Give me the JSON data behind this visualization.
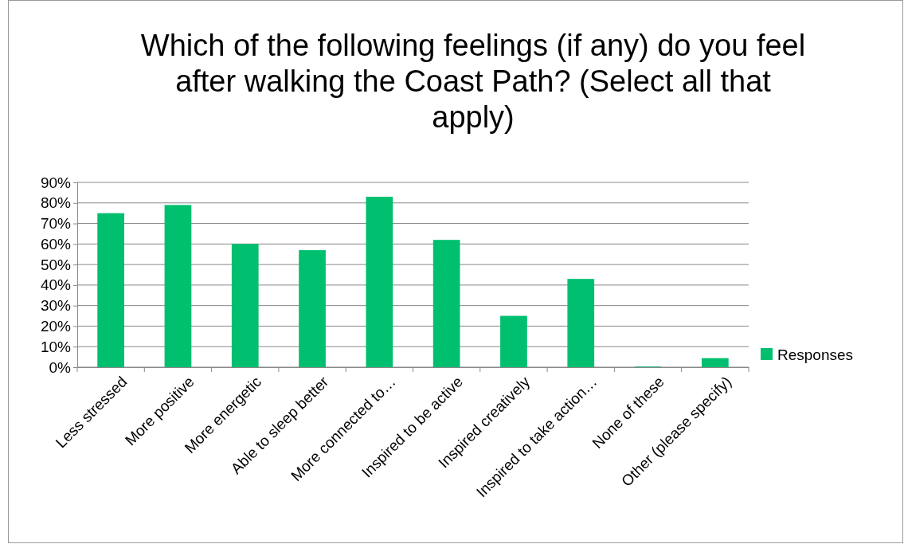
{
  "chart_data": {
    "type": "bar",
    "title": "Which of the following feelings (if any) do you feel after walking the Coast Path? (Select all that apply)",
    "categories": [
      "Less stressed",
      "More positive",
      "More energetic",
      "Able to sleep better",
      "More connected to…",
      "Inspired to be active",
      "Inspired creatively",
      "Inspired to take action…",
      "None of these",
      "Other (please specify)"
    ],
    "series": [
      {
        "name": "Responses",
        "color": "#00bf6f",
        "values": [
          75,
          79,
          60,
          57,
          83,
          62,
          25,
          43,
          0.3,
          4.4
        ]
      }
    ],
    "ylim": [
      0,
      90
    ],
    "yticks": [
      {
        "value": 0,
        "label": "0%"
      },
      {
        "value": 10,
        "label": "10%"
      },
      {
        "value": 20,
        "label": "20%"
      },
      {
        "value": 30,
        "label": "30%"
      },
      {
        "value": 40,
        "label": "40%"
      },
      {
        "value": 50,
        "label": "50%"
      },
      {
        "value": 60,
        "label": "60%"
      },
      {
        "value": 70,
        "label": "70%"
      },
      {
        "value": 80,
        "label": "80%"
      },
      {
        "value": 90,
        "label": "90%"
      }
    ],
    "grid": "y",
    "legend": "right"
  }
}
